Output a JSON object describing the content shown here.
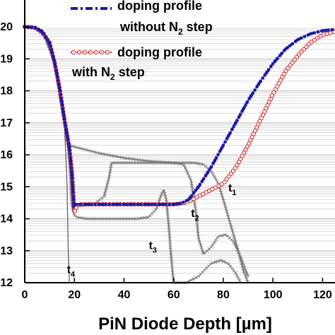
{
  "chart_data": {
    "type": "line",
    "title": "",
    "xlabel": "PiN Diode Depth [µm]",
    "ylabel": "",
    "xlim": [
      0,
      125
    ],
    "ylim": [
      12,
      20
    ],
    "y_scale": "log",
    "grid": "horizontal minor gridlines",
    "x_ticks": [
      "0",
      "20",
      "40",
      "60",
      "80",
      "100",
      "120"
    ],
    "y_ticks": [
      "20",
      "19",
      "18",
      "17",
      "16",
      "15",
      "14",
      "13",
      "12"
    ],
    "legend": {
      "placement": "top-right",
      "entries": [
        {
          "line1": "doping profile",
          "line2a": "without N",
          "sub": "2",
          "line2b": " step",
          "style": "blue dash-dot",
          "color": "#1a1aa8"
        },
        {
          "line1": "doping profile",
          "line2a": "with N",
          "sub": "2",
          "line2b": " step",
          "style": "red dotted",
          "color": "#d42020"
        }
      ]
    },
    "annotations": [
      {
        "text": "t",
        "sub": "1",
        "x": 82,
        "y": 14.85
      },
      {
        "text": "t",
        "sub": "2",
        "x": 67,
        "y": 14.05
      },
      {
        "text": "t",
        "sub": "3",
        "x": 50,
        "y": 13.05
      },
      {
        "text": "t",
        "sub": "4",
        "x": 17,
        "y": 12.3
      }
    ],
    "series": [
      {
        "name": "doping profile without N2 step",
        "color": "#1a1aa8",
        "style": "dashdot",
        "x": [
          0,
          4,
          7,
          10,
          12,
          14,
          16,
          18,
          19,
          19.8,
          20.5,
          22,
          30,
          40,
          50,
          60,
          63,
          66,
          70,
          75,
          80,
          85,
          90,
          95,
          100,
          105,
          110,
          115,
          120,
          125
        ],
        "y": [
          20,
          19.98,
          19.85,
          19.5,
          18.9,
          18.1,
          17.1,
          16.2,
          15.4,
          14.4,
          14.45,
          14.45,
          14.45,
          14.45,
          14.45,
          14.45,
          14.48,
          14.6,
          15.0,
          15.6,
          16.3,
          17.0,
          17.7,
          18.3,
          18.85,
          19.3,
          19.6,
          19.78,
          19.88,
          19.92
        ]
      },
      {
        "name": "doping profile with N2 step",
        "color": "#d42020",
        "style": "dotted",
        "x": [
          0,
          4,
          7,
          10,
          12,
          14,
          16,
          18,
          19,
          20,
          21,
          22,
          30,
          40,
          50,
          60,
          65,
          70,
          75,
          80,
          85,
          90,
          95,
          100,
          105,
          110,
          115,
          120,
          125
        ],
        "y": [
          20,
          19.98,
          19.85,
          19.5,
          18.9,
          18.1,
          17.1,
          16.2,
          15.5,
          14.2,
          14.4,
          14.45,
          14.45,
          14.45,
          14.45,
          14.45,
          14.5,
          14.7,
          14.9,
          15.1,
          15.6,
          16.3,
          17.1,
          17.9,
          18.6,
          19.1,
          19.5,
          19.75,
          19.85
        ]
      },
      {
        "name": "t1",
        "color": "#777777",
        "style": "solid-markers",
        "x": [
          0,
          4,
          8,
          12,
          15,
          17,
          18,
          20,
          30,
          40,
          50,
          60,
          68,
          72,
          75,
          78,
          80,
          83,
          86,
          88,
          90
        ],
        "y": [
          20,
          19.98,
          19.7,
          18.9,
          17.5,
          16.6,
          16.3,
          16.25,
          16.05,
          15.9,
          15.8,
          15.75,
          15.75,
          15.7,
          15.5,
          15.1,
          14.6,
          13.8,
          13.0,
          12.4,
          12.0
        ]
      },
      {
        "name": "t2",
        "color": "#777777",
        "style": "solid-markers",
        "x": [
          0,
          4,
          8,
          12,
          15,
          17,
          18,
          19,
          20,
          22,
          28,
          32,
          34,
          35,
          40,
          50,
          60,
          64,
          67,
          69,
          70,
          72,
          75,
          78,
          81,
          84,
          87,
          90
        ],
        "y": [
          20,
          19.98,
          19.7,
          18.9,
          17.5,
          16.6,
          16.0,
          15.3,
          14.4,
          14.4,
          14.45,
          14.7,
          15.3,
          15.75,
          15.75,
          15.75,
          15.75,
          15.7,
          15.2,
          14.2,
          13.4,
          12.9,
          13.1,
          13.45,
          13.5,
          13.3,
          12.8,
          12.2
        ]
      },
      {
        "name": "t3",
        "color": "#777777",
        "style": "solid-markers",
        "x": [
          0,
          4,
          8,
          12,
          15,
          17,
          18,
          19,
          20,
          21,
          25,
          35,
          45,
          50,
          53,
          55,
          56,
          57,
          58,
          59,
          60,
          65,
          70,
          75,
          79,
          82,
          85,
          87
        ],
        "y": [
          20,
          19.98,
          19.7,
          18.9,
          17.5,
          16.6,
          15.8,
          14.4,
          14.1,
          14.05,
          14.0,
          14.0,
          14.0,
          14.05,
          14.3,
          14.75,
          14.9,
          14.6,
          13.8,
          12.8,
          12.0,
          12.0,
          12.2,
          12.6,
          12.7,
          12.6,
          12.3,
          12.0
        ]
      },
      {
        "name": "t4",
        "color": "#555555",
        "style": "solid",
        "x": [
          0,
          4,
          8,
          12,
          14,
          16,
          17,
          17.5,
          18
        ],
        "y": [
          20,
          19.98,
          19.7,
          18.9,
          18.0,
          16.9,
          15.2,
          13.0,
          12.0
        ]
      }
    ]
  }
}
